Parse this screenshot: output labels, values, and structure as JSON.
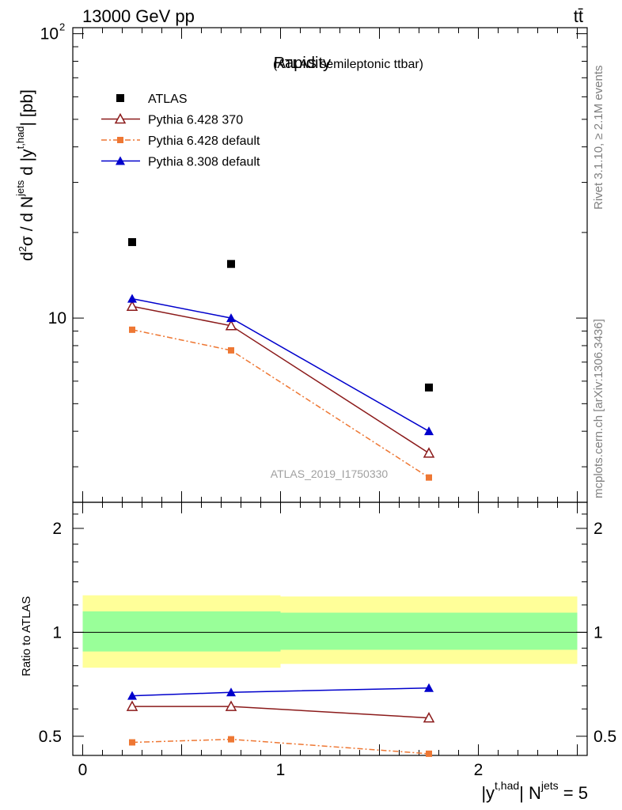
{
  "header": {
    "energy_label": "13000 GeV pp",
    "process_label": "tt̄"
  },
  "side": {
    "rivet_label": "Rivet 3.1.10, ≥ 2.1M events",
    "mcplots_label": "mcplots.cern.ch [arXiv:1306.3436]"
  },
  "chart_data": [
    {
      "type": "line",
      "title": "Rapidity",
      "subtitle": "(ATLAS semileptonic ttbar)",
      "ylabel_main": "d²σ / d N^jets d |y^t,had| [pb]",
      "ylabel_sup1": "jets",
      "ylabel_sup2": "t,had",
      "yscale": "log",
      "ylim": [
        2.25,
        105
      ],
      "xlim": [
        -0.05,
        2.55
      ],
      "ytick_labels": [
        "10",
        "10",
        "2"
      ],
      "watermark": "ATLAS_2019_I1750330",
      "legend_position": "top-left",
      "x": [
        0.25,
        0.75,
        1.75
      ],
      "series": [
        {
          "name": "ATLAS",
          "values": [
            18.5,
            15.5,
            5.7
          ],
          "color": "#000000",
          "marker": "square"
        },
        {
          "name": "Pythia 6.428 370",
          "values": [
            11.0,
            9.4,
            3.35
          ],
          "color": "#8b1a1a",
          "marker": "open-triangle"
        },
        {
          "name": "Pythia 6.428 default",
          "values": [
            9.1,
            7.7,
            2.75
          ],
          "color": "#ee7733",
          "marker": "small-square",
          "dash": "dash-dot"
        },
        {
          "name": "Pythia 8.308 default",
          "values": [
            11.7,
            10.0,
            4.0
          ],
          "color": "#0000cc",
          "marker": "triangle"
        }
      ]
    },
    {
      "type": "line",
      "ylabel": "Ratio to ATLAS",
      "xlabel_main": "|y^t,had| N^jets = 5",
      "xlabel_part1": "|y",
      "xlabel_sup1": "t,had",
      "xlabel_part2": "| N",
      "xlabel_sup2": "jets",
      "xlabel_part3": " = 5",
      "yscale": "log",
      "ylim": [
        0.44,
        2.38
      ],
      "xlim": [
        -0.05,
        2.55
      ],
      "ytick_labels": [
        "0.5",
        "1",
        "2"
      ],
      "xtick_labels": [
        "0",
        "1",
        "2"
      ],
      "bands": [
        {
          "x": [
            0,
            1
          ],
          "inner": [
            0.88,
            1.15
          ],
          "outer": [
            0.79,
            1.28
          ]
        },
        {
          "x": [
            1,
            2.5
          ],
          "inner": [
            0.89,
            1.14
          ],
          "outer": [
            0.81,
            1.27
          ]
        }
      ],
      "band_colors": {
        "inner": "#99ff99",
        "outer": "#ffff99"
      },
      "x": [
        0.25,
        0.75,
        1.75
      ],
      "series": [
        {
          "name": "Pythia 6.428 370",
          "values": [
            0.61,
            0.61,
            0.565
          ],
          "color": "#8b1a1a"
        },
        {
          "name": "Pythia 6.428 default",
          "values": [
            0.48,
            0.49,
            0.445
          ],
          "color": "#ee7733"
        },
        {
          "name": "Pythia 8.308 default",
          "values": [
            0.655,
            0.67,
            0.69
          ],
          "color": "#0000cc"
        }
      ]
    }
  ]
}
